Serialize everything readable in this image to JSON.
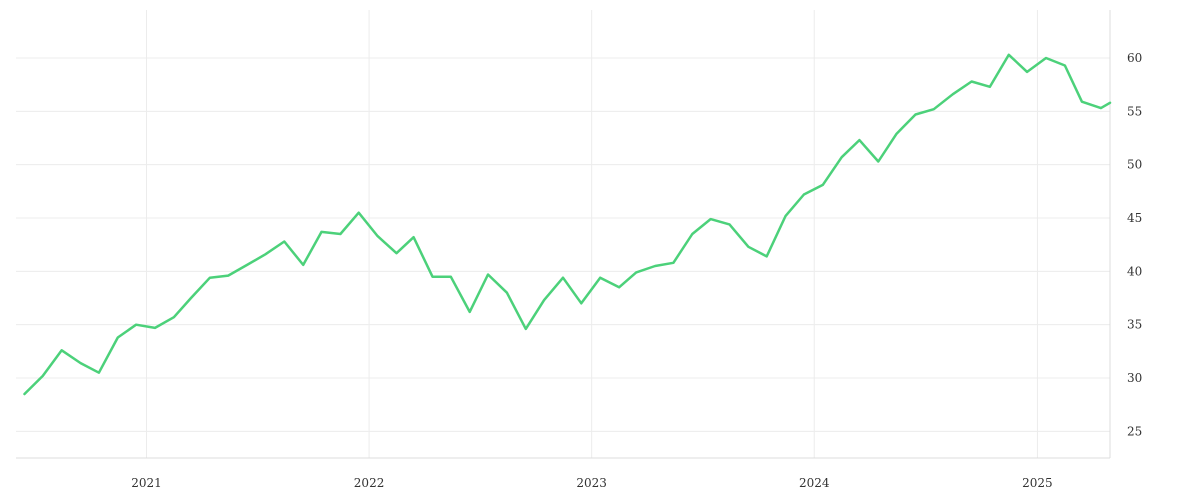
{
  "chart_data": {
    "type": "line",
    "title": "",
    "xlabel": "",
    "ylabel": "",
    "grid": true,
    "legend": "none",
    "x_axis": {
      "type": "date",
      "ticks": [
        "2021-01-01",
        "2022-01-01",
        "2023-01-01",
        "2024-01-01",
        "2025-01-01"
      ],
      "tick_labels": [
        "2021",
        "2022",
        "2023",
        "2024",
        "2025"
      ],
      "range": [
        "2020-06-01",
        "2025-04-30"
      ]
    },
    "y_axis": {
      "position": "right",
      "ticks": [
        25,
        30,
        35,
        40,
        45,
        50,
        55,
        60
      ],
      "tick_labels": [
        "25",
        "30",
        "35",
        "40",
        "45",
        "50",
        "55",
        "60"
      ],
      "ylim": [
        22.5,
        64.5
      ]
    },
    "series": [
      {
        "color": "#4cd17a",
        "points": [
          [
            "2020-06-15",
            28.5
          ],
          [
            "2020-07-15",
            30.2
          ],
          [
            "2020-08-15",
            32.6
          ],
          [
            "2020-09-15",
            31.4
          ],
          [
            "2020-10-15",
            30.5
          ],
          [
            "2020-11-15",
            33.8
          ],
          [
            "2020-12-15",
            35.0
          ],
          [
            "2021-01-15",
            34.7
          ],
          [
            "2021-02-15",
            35.7
          ],
          [
            "2021-03-15",
            37.5
          ],
          [
            "2021-04-15",
            39.4
          ],
          [
            "2021-05-15",
            39.6
          ],
          [
            "2021-06-15",
            40.6
          ],
          [
            "2021-07-15",
            41.6
          ],
          [
            "2021-08-15",
            42.8
          ],
          [
            "2021-09-15",
            40.6
          ],
          [
            "2021-10-15",
            43.7
          ],
          [
            "2021-11-15",
            43.5
          ],
          [
            "2021-12-15",
            45.5
          ],
          [
            "2022-01-15",
            43.3
          ],
          [
            "2022-02-15",
            41.7
          ],
          [
            "2022-03-15",
            43.2
          ],
          [
            "2022-04-15",
            39.5
          ],
          [
            "2022-05-15",
            39.5
          ],
          [
            "2022-06-15",
            36.2
          ],
          [
            "2022-07-15",
            39.7
          ],
          [
            "2022-08-15",
            38.0
          ],
          [
            "2022-09-15",
            34.6
          ],
          [
            "2022-10-15",
            37.3
          ],
          [
            "2022-11-15",
            39.4
          ],
          [
            "2022-12-15",
            37.0
          ],
          [
            "2023-01-15",
            39.4
          ],
          [
            "2023-02-15",
            38.5
          ],
          [
            "2023-03-15",
            39.9
          ],
          [
            "2023-04-15",
            40.5
          ],
          [
            "2023-05-15",
            40.8
          ],
          [
            "2023-06-15",
            43.5
          ],
          [
            "2023-07-15",
            44.9
          ],
          [
            "2023-08-15",
            44.4
          ],
          [
            "2023-09-15",
            42.3
          ],
          [
            "2023-10-15",
            41.4
          ],
          [
            "2023-11-15",
            45.2
          ],
          [
            "2023-12-15",
            47.2
          ],
          [
            "2024-01-15",
            48.1
          ],
          [
            "2024-02-15",
            50.7
          ],
          [
            "2024-03-15",
            52.3
          ],
          [
            "2024-04-15",
            50.3
          ],
          [
            "2024-05-15",
            52.9
          ],
          [
            "2024-06-15",
            54.7
          ],
          [
            "2024-07-15",
            55.2
          ],
          [
            "2024-08-15",
            56.6
          ],
          [
            "2024-09-15",
            57.8
          ],
          [
            "2024-10-15",
            57.3
          ],
          [
            "2024-11-15",
            60.3
          ],
          [
            "2024-12-15",
            58.7
          ],
          [
            "2025-01-15",
            60.0
          ],
          [
            "2025-02-15",
            59.3
          ],
          [
            "2025-03-15",
            55.9
          ],
          [
            "2025-04-15",
            55.3
          ],
          [
            "2025-04-30",
            55.8
          ]
        ]
      }
    ]
  }
}
